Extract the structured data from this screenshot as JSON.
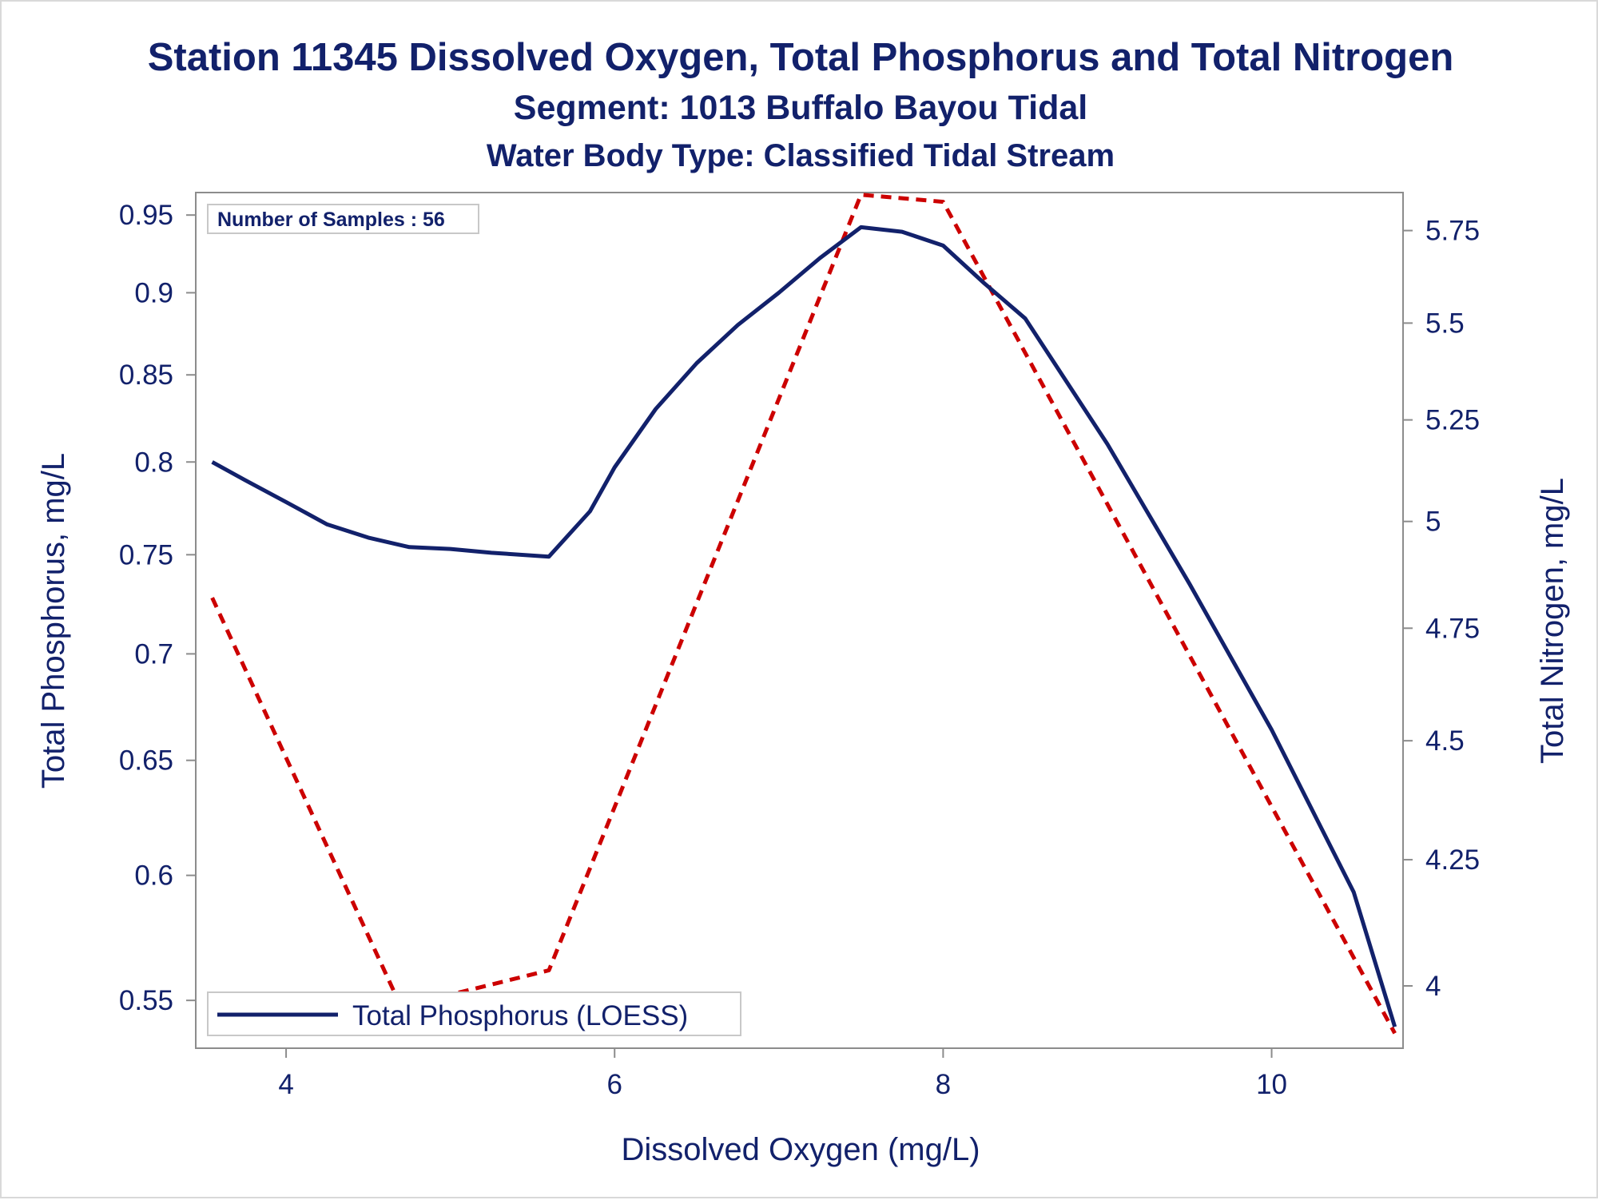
{
  "chart_data": {
    "type": "line",
    "title": "Station 11345  Dissolved Oxygen, Total Phosphorus and Total Nitrogen",
    "subtitle": "Segment: 1013  Buffalo Bayou Tidal",
    "subtitle2": "Water Body Type: Classified Tidal Stream",
    "xlabel": "Dissolved Oxygen (mg/L)",
    "ylabel": "Total Phosphorus, mg/L",
    "y2label": "Total Nitrogen, mg/L",
    "xlim": [
      3.45,
      10.8
    ],
    "ylim": [
      0.532,
      0.965
    ],
    "y2lim": [
      3.882,
      5.856
    ],
    "x_ticks": [
      "4",
      "6",
      "8",
      "10"
    ],
    "y_ticks": [
      "0.55",
      "0.6",
      "0.65",
      "0.7",
      "0.75",
      "0.8",
      "0.85",
      "0.9",
      "0.95"
    ],
    "y2_ticks": [
      "4",
      "4.25",
      "4.5",
      "4.75",
      "5",
      "5.25",
      "5.5",
      "5.75"
    ],
    "y_scale": "log",
    "y2_scale": "log",
    "annotation": "Number of Samples : 56",
    "legend": {
      "label": "Total Phosphorus (LOESS)",
      "position": "bottom-left"
    },
    "colors": {
      "phosphorus": "#12216b",
      "nitrogen": "#cc0000",
      "text": "#12216b",
      "axis": "#8c8c8c"
    },
    "series": [
      {
        "name": "Total Phosphorus (LOESS)",
        "axis": "left",
        "style": "solid",
        "x": [
          3.55,
          3.75,
          4.0,
          4.25,
          4.5,
          4.75,
          5.0,
          5.25,
          5.6,
          5.85,
          6.0,
          6.25,
          6.5,
          6.75,
          7.0,
          7.25,
          7.5,
          7.75,
          8.0,
          8.25,
          8.5,
          9.0,
          9.5,
          10.0,
          10.5,
          10.75
        ],
        "values": [
          0.8,
          0.79,
          0.778,
          0.766,
          0.759,
          0.754,
          0.753,
          0.751,
          0.749,
          0.773,
          0.797,
          0.83,
          0.857,
          0.88,
          0.9,
          0.922,
          0.942,
          0.939,
          0.93,
          0.906,
          0.884,
          0.81,
          0.735,
          0.664,
          0.593,
          0.54
        ]
      },
      {
        "name": "",
        "axis": "right",
        "style": "dashed",
        "x": [
          3.55,
          4.7,
          5.6,
          7.5,
          8.0,
          10.75
        ],
        "values": [
          4.82,
          3.96,
          4.03,
          5.85,
          5.83,
          3.91
        ]
      }
    ]
  }
}
